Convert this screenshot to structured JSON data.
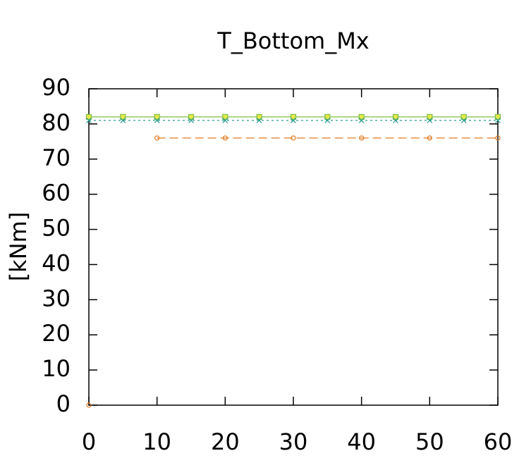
{
  "chart_data": {
    "type": "line",
    "title": "T_Bottom_Mx",
    "y_label": "[kNm]",
    "xlim": [
      0,
      60
    ],
    "ylim": [
      0,
      90
    ],
    "xticks": [
      0,
      10,
      20,
      30,
      40,
      50,
      60
    ],
    "yticks": [
      0,
      10,
      20,
      30,
      40,
      50,
      60,
      70,
      80,
      90
    ],
    "series": [
      {
        "color": "#7fbf3f",
        "marker": "square",
        "dash": "solid",
        "x": [
          0,
          5,
          10,
          15,
          20,
          25,
          30,
          35,
          40,
          45,
          50,
          55,
          60
        ],
        "values": [
          82,
          82,
          82,
          82,
          82,
          82,
          82,
          82,
          82,
          82,
          82,
          82,
          82
        ]
      },
      {
        "color": "#2a9d8f",
        "marker": "cross",
        "dash": "dotted",
        "x": [
          0,
          5,
          10,
          15,
          20,
          25,
          30,
          35,
          40,
          45,
          50,
          55,
          60
        ],
        "values": [
          81,
          81,
          81,
          81,
          81,
          81,
          81,
          81,
          81,
          81,
          81,
          81,
          81
        ]
      },
      {
        "color": "#e07b24",
        "marker": "circle",
        "dash": "dashed",
        "x": [
          0,
          1,
          10,
          20,
          30,
          40,
          50,
          60
        ],
        "values": [
          0,
          null,
          76,
          76,
          76,
          76,
          76,
          76
        ]
      }
    ]
  }
}
